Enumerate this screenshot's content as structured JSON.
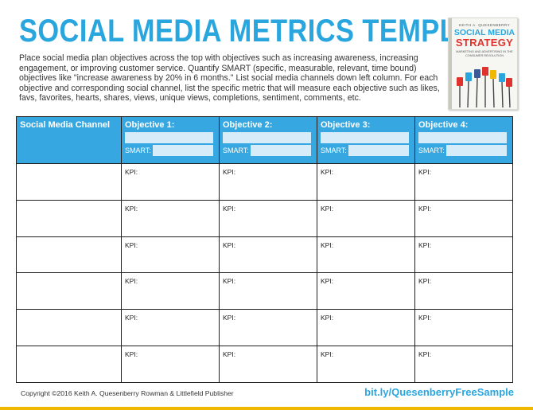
{
  "header": {
    "title": "SOCIAL MEDIA METRICS TEMPLATE",
    "intro": "Place social media plan objectives across the top with objectives such as increasing awareness, increasing engagement, or improving customer service. Quantify SMART (specific, measurable, relevant, time bound) objectives like \"increase awareness by 20% in 6 months.\" List social media channels down left column. For each objective and corresponding social channel, list the specific metric that will measure each objective such as likes, favs, favorites, hearts, shares, views, unique views, completions, sentiment, comments, etc."
  },
  "book": {
    "author": "KEITH A. QUESENBERRY",
    "title_line1": "SOCIAL MEDIA",
    "title_line2": "STRATEGY",
    "subtitle": "MARKETING AND ADVERTISING IN THE CONSUMER REVOLUTION"
  },
  "table": {
    "channel_header": "Social Media Channel",
    "smart_label": "SMART:",
    "objectives": [
      "Objective 1:",
      "Objective 2:",
      "Objective 3:",
      "Objective 4:"
    ],
    "kpi_label": "KPI:",
    "row_count": 6
  },
  "footer": {
    "copyright": "Copyright ©2016 Keith A. Quesenberry Rowman & Littlefield Publisher",
    "link": "bit.ly/QuesenberryFreeSample"
  },
  "colors": {
    "accent": "#2aa6df",
    "header_fill": "#36a7e0",
    "field_fill": "#d6ecf8",
    "footer_bar": "#f0b800"
  }
}
